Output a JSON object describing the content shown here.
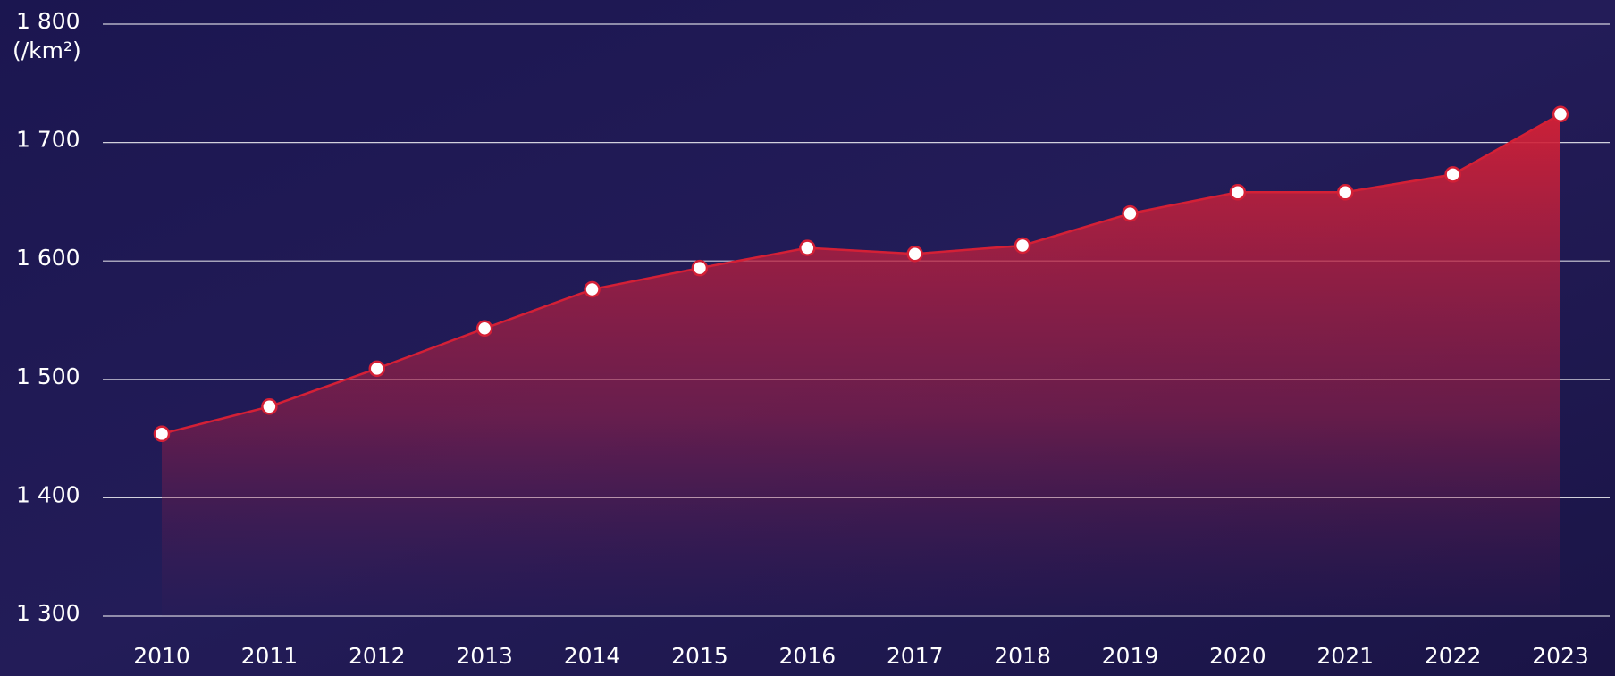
{
  "chart_data": {
    "type": "area",
    "y_unit_label": "(/km²)",
    "categories": [
      "2010",
      "2011",
      "2012",
      "2013",
      "2014",
      "2015",
      "2016",
      "2017",
      "2018",
      "2019",
      "2020",
      "2021",
      "2022",
      "2023"
    ],
    "series": [
      {
        "color": "#d42036",
        "values": [
          1454,
          1477,
          1509,
          1543,
          1576,
          1594,
          1611,
          1606,
          1613,
          1640,
          1658,
          1658,
          1673,
          1724
        ]
      }
    ],
    "ylim": [
      1300,
      1800
    ],
    "yticks": [
      {
        "value": 1300,
        "label": "1 300"
      },
      {
        "value": 1400,
        "label": "1 400"
      },
      {
        "value": 1500,
        "label": "1 500"
      },
      {
        "value": 1600,
        "label": "1 600"
      },
      {
        "value": 1700,
        "label": "1 700"
      },
      {
        "value": 1800,
        "label": "1 800"
      }
    ],
    "grid": true
  }
}
